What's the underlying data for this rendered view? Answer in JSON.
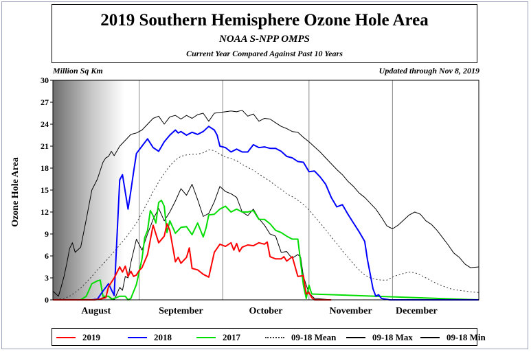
{
  "header": {
    "title": "2019 Southern Hemisphere Ozone Hole Area",
    "subtitle": "NOAA S-NPP OMPS",
    "subtitle2": "Current Year Compared Against Past 10 Years",
    "unit": "Million Sq Km",
    "updated": "Updated through Nov 8, 2019"
  },
  "chart_data": {
    "type": "line",
    "ylabel": "Ozone Hole Area",
    "ylim": [
      0,
      30
    ],
    "yticks": [
      0,
      3,
      6,
      9,
      12,
      15,
      18,
      21,
      24,
      27,
      30
    ],
    "xlim": [
      0,
      153
    ],
    "months": [
      {
        "label": "August",
        "start": 0
      },
      {
        "label": "September",
        "start": 31
      },
      {
        "label": "October",
        "start": 61
      },
      {
        "label": "November",
        "start": 92
      },
      {
        "label": "December",
        "start": 122
      }
    ],
    "grid": "vertical month lines",
    "series": [
      {
        "name": "2019",
        "color": "#ff0000",
        "style": "solid",
        "x": [
          0,
          10,
          13,
          15,
          17,
          19,
          20,
          21,
          22,
          24,
          25,
          26,
          27,
          28,
          29,
          30,
          31,
          32,
          34,
          36,
          38,
          40,
          41,
          42,
          44,
          45,
          46,
          48,
          49,
          50,
          52,
          54,
          55,
          56,
          58,
          60,
          62,
          64,
          65,
          66,
          67,
          68,
          70,
          72,
          74,
          76,
          77,
          78,
          80,
          82,
          83,
          84,
          86,
          88,
          90,
          91,
          92,
          93,
          94,
          100
        ],
        "y": [
          0,
          0,
          0,
          0,
          0.1,
          0.3,
          1.8,
          2.4,
          3.0,
          4.5,
          3.8,
          4.6,
          3.2,
          3.9,
          3.2,
          3.4,
          4.0,
          4.4,
          6.2,
          10.2,
          7.8,
          8.7,
          10.4,
          9.5,
          5.2,
          5.8,
          5.0,
          5.8,
          7.1,
          4.3,
          4.1,
          3.5,
          3.3,
          3.1,
          6.5,
          7.6,
          7.3,
          7.8,
          6.8,
          7.7,
          6.6,
          7.2,
          7.5,
          7.4,
          7.8,
          7.6,
          7.9,
          5.9,
          5.6,
          5.6,
          5.9,
          5.3,
          5.9,
          3.2,
          3.3,
          0.8,
          1.0,
          0.3,
          0,
          0
        ]
      },
      {
        "name": "2018",
        "color": "#0000ff",
        "style": "solid",
        "x": [
          0,
          12,
          14,
          16,
          18,
          20,
          22,
          24,
          25,
          27,
          28,
          29,
          30,
          32,
          34,
          36,
          38,
          40,
          42,
          44,
          45,
          46,
          48,
          50,
          52,
          54,
          56,
          58,
          59,
          60,
          62,
          64,
          66,
          68,
          70,
          72,
          74,
          76,
          78,
          80,
          82,
          84,
          86,
          88,
          90,
          92,
          94,
          96,
          98,
          100,
          102,
          104,
          106,
          108,
          110,
          112,
          113,
          114,
          115,
          116,
          117,
          118,
          121,
          153
        ],
        "y": [
          0,
          0,
          0,
          0.1,
          1.2,
          2.2,
          0.6,
          16.4,
          17.1,
          12.4,
          14.9,
          17.5,
          20.0,
          21.0,
          22.0,
          20.8,
          20.3,
          21.6,
          22.5,
          23.2,
          22.8,
          23.0,
          22.5,
          22.9,
          22.6,
          23.0,
          23.7,
          23.2,
          22.5,
          21.0,
          20.8,
          20.2,
          20.6,
          20.2,
          20.2,
          21.2,
          20.8,
          20.9,
          20.7,
          20.7,
          20.3,
          19.6,
          19.4,
          18.9,
          18.8,
          17.5,
          17.6,
          16.8,
          15.8,
          14.0,
          12.7,
          13.0,
          11.7,
          10.5,
          9.3,
          8.0,
          5.5,
          3.5,
          1.5,
          0.5,
          0.7,
          0.2,
          0,
          0
        ]
      },
      {
        "name": "2017",
        "color": "#00dd00",
        "style": "solid",
        "x": [
          0,
          10,
          12,
          14,
          16,
          17,
          18,
          20,
          21,
          22,
          24,
          26,
          27,
          28,
          30,
          32,
          33,
          34,
          35,
          36,
          37,
          38,
          39,
          40,
          41,
          42,
          44,
          46,
          48,
          50,
          52,
          54,
          55,
          56,
          58,
          60,
          62,
          64,
          66,
          68,
          70,
          72,
          74,
          76,
          78,
          80,
          82,
          84,
          86,
          88,
          90,
          91,
          92,
          93,
          153
        ],
        "y": [
          0,
          0,
          0.5,
          2.2,
          2.6,
          2.7,
          0.5,
          0.5,
          0.1,
          0.2,
          0.5,
          0.5,
          0,
          0.2,
          2.1,
          5.6,
          8.5,
          9.5,
          12.2,
          11.5,
          10.5,
          13.3,
          13.6,
          12.8,
          9.2,
          10.8,
          9.1,
          9.9,
          10.0,
          8.9,
          10.5,
          8.6,
          9.8,
          11.6,
          11.7,
          12.4,
          12.8,
          12.0,
          12.4,
          12.0,
          12.0,
          12.2,
          11.0,
          11.0,
          10.4,
          9.5,
          9.2,
          8.7,
          8.3,
          8.3,
          2.0,
          0.2,
          2.0,
          0.8,
          0
        ]
      },
      {
        "name": "09-18 Mean",
        "color": "#333333",
        "style": "dotted",
        "x": [
          0,
          4,
          6,
          8,
          10,
          12,
          14,
          16,
          18,
          20,
          22,
          24,
          26,
          28,
          30,
          32,
          34,
          36,
          38,
          40,
          42,
          44,
          46,
          48,
          50,
          52,
          54,
          56,
          58,
          60,
          62,
          64,
          66,
          68,
          70,
          72,
          74,
          76,
          78,
          80,
          82,
          84,
          86,
          88,
          90,
          92,
          94,
          96,
          98,
          100,
          102,
          104,
          106,
          108,
          110,
          112,
          114,
          116,
          118,
          120,
          122,
          124,
          126,
          128,
          130,
          132,
          134,
          136,
          138,
          140,
          142,
          144,
          146,
          148,
          150,
          153
        ],
        "y": [
          0,
          0.2,
          0.5,
          1.0,
          1.6,
          2.4,
          3.2,
          4.1,
          4.9,
          5.7,
          6.6,
          7.5,
          8.4,
          9.4,
          10.5,
          11.9,
          13.3,
          14.8,
          16.1,
          17.3,
          18.3,
          19.1,
          19.6,
          19.8,
          19.9,
          19.9,
          20.1,
          20.5,
          20.4,
          19.9,
          19.5,
          19.3,
          19.0,
          18.5,
          18.1,
          17.7,
          17.2,
          16.7,
          16.2,
          15.6,
          15.1,
          14.5,
          14.1,
          13.6,
          13.0,
          12.3,
          11.4,
          10.5,
          9.6,
          8.6,
          7.7,
          6.7,
          5.8,
          4.9,
          4.1,
          3.4,
          3.0,
          2.8,
          2.7,
          2.7,
          3.1,
          3.4,
          3.6,
          3.8,
          3.7,
          3.4,
          3.0,
          2.6,
          2.2,
          1.9,
          1.6,
          1.4,
          1.3,
          1.2,
          1.1,
          1.0
        ]
      },
      {
        "name": "09-18 Max",
        "color": "#000000",
        "style": "solid",
        "x": [
          0,
          2,
          3,
          4,
          5,
          6,
          7,
          8,
          10,
          12,
          14,
          16,
          18,
          19,
          20,
          21,
          22,
          24,
          26,
          28,
          30,
          32,
          34,
          36,
          38,
          40,
          42,
          44,
          46,
          48,
          50,
          52,
          54,
          56,
          58,
          60,
          62,
          64,
          66,
          68,
          70,
          72,
          74,
          76,
          78,
          80,
          82,
          84,
          86,
          88,
          90,
          92,
          94,
          96,
          98,
          100,
          102,
          104,
          106,
          108,
          110,
          112,
          114,
          116,
          118,
          120,
          122,
          124,
          126,
          128,
          130,
          132,
          134,
          136,
          138,
          140,
          142,
          144,
          146,
          148,
          150,
          153
        ],
        "y": [
          1.2,
          0.5,
          1.8,
          3.2,
          5.0,
          7.0,
          7.8,
          6.5,
          7.2,
          11.0,
          15.0,
          16.5,
          18.8,
          19.4,
          19.6,
          20.3,
          19.7,
          21.0,
          21.8,
          22.6,
          22.8,
          23.2,
          24.0,
          24.8,
          25.1,
          24.0,
          25.0,
          25.2,
          24.7,
          25.2,
          24.8,
          25.3,
          25.5,
          24.4,
          25.5,
          25.6,
          25.7,
          25.8,
          25.7,
          25.9,
          25.1,
          25.4,
          24.4,
          24.8,
          24.7,
          24.2,
          23.7,
          23.4,
          23.0,
          22.9,
          22.2,
          21.6,
          20.9,
          20.2,
          19.4,
          18.6,
          17.8,
          17.1,
          16.2,
          15.5,
          14.6,
          14.0,
          13.2,
          12.4,
          11.3,
          10.1,
          9.7,
          10.2,
          10.9,
          11.6,
          12.0,
          11.7,
          10.8,
          10.3,
          9.5,
          8.5,
          7.5,
          6.4,
          5.8,
          4.9,
          4.4,
          4.5
        ]
      },
      {
        "name": "09-18 Min",
        "color": "#000000",
        "style": "solid",
        "x": [
          0,
          10,
          14,
          16,
          18,
          20,
          22,
          24,
          25,
          26,
          27,
          28,
          30,
          32,
          34,
          36,
          38,
          40,
          42,
          44,
          46,
          48,
          50,
          52,
          54,
          56,
          58,
          60,
          62,
          64,
          66,
          68,
          70,
          72,
          74,
          76,
          78,
          80,
          82,
          84,
          85,
          86,
          88,
          89,
          90,
          92,
          94,
          100,
          153
        ],
        "y": [
          0,
          0,
          0,
          0,
          0.3,
          0.5,
          0,
          1.7,
          1.3,
          3.2,
          3.0,
          5.1,
          8.3,
          6.8,
          9.0,
          11.0,
          12.5,
          10.8,
          12.0,
          13.5,
          15.2,
          14.3,
          15.8,
          13.7,
          11.4,
          11.8,
          13.4,
          15.5,
          14.8,
          14.5,
          14.0,
          12.0,
          11.5,
          12.4,
          11.1,
          10.2,
          9.0,
          8.7,
          6.5,
          6.6,
          6.1,
          5.7,
          6.2,
          5.8,
          3.2,
          0.9,
          0.2,
          0,
          0
        ]
      }
    ]
  }
}
